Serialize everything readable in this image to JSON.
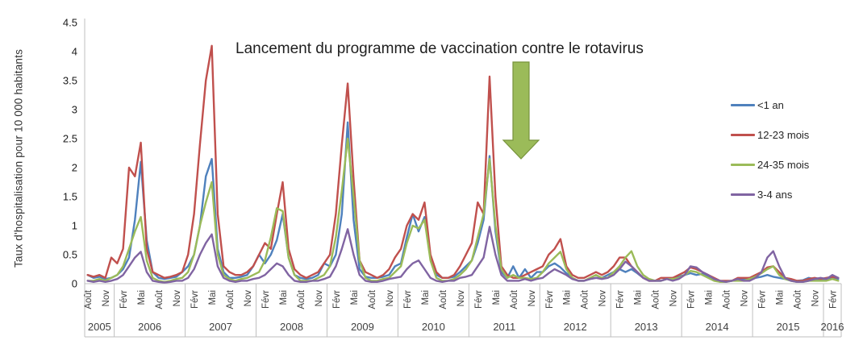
{
  "chart_data": {
    "type": "line",
    "title": "",
    "annotation": {
      "text": "Lancement du programme de vaccination contre le rotavirus",
      "arrow_icon": "down-block-arrow",
      "arrow_color": "#9BBB59",
      "arrow_border": "#77933C",
      "arrow_points_to": "2011-09"
    },
    "ylabel": "Taux d'hospitalisation pour 10 000 habitants",
    "xlabel": "",
    "ylim": [
      0,
      4.5
    ],
    "y_tick_step": 0.5,
    "y_tick_labels": [
      "0",
      "0.5",
      "1",
      "1.5",
      "2",
      "2.5",
      "3",
      "3.5",
      "4",
      "4.5"
    ],
    "grid": false,
    "legend_position": "right",
    "x_axis": {
      "unit": "month",
      "start": "2005-08",
      "end": "2016-03",
      "year_groups": [
        {
          "year": "2005",
          "months": 5,
          "tick_labels": [
            "Août",
            "Nov"
          ],
          "tick_offsets": [
            0,
            3
          ]
        },
        {
          "year": "2006",
          "months": 12,
          "tick_labels": [
            "Févr",
            "Mai",
            "Août",
            "Nov"
          ],
          "tick_offsets": [
            1,
            4,
            7,
            10
          ]
        },
        {
          "year": "2007",
          "months": 12,
          "tick_labels": [
            "Févr",
            "Mai",
            "Août",
            "Nov"
          ],
          "tick_offsets": [
            1,
            4,
            7,
            10
          ]
        },
        {
          "year": "2008",
          "months": 12,
          "tick_labels": [
            "Févr",
            "Mai",
            "Août",
            "Nov"
          ],
          "tick_offsets": [
            1,
            4,
            7,
            10
          ]
        },
        {
          "year": "2009",
          "months": 12,
          "tick_labels": [
            "Févr",
            "Mai",
            "Août",
            "Nov"
          ],
          "tick_offsets": [
            1,
            4,
            7,
            10
          ]
        },
        {
          "year": "2010",
          "months": 12,
          "tick_labels": [
            "Févr",
            "Mai",
            "Août",
            "Nov"
          ],
          "tick_offsets": [
            1,
            4,
            7,
            10
          ]
        },
        {
          "year": "2011",
          "months": 12,
          "tick_labels": [
            "Févr",
            "Mai",
            "Août",
            "Nov"
          ],
          "tick_offsets": [
            1,
            4,
            7,
            10
          ]
        },
        {
          "year": "2012",
          "months": 12,
          "tick_labels": [
            "Févr",
            "Mai",
            "Août",
            "Nov"
          ],
          "tick_offsets": [
            1,
            4,
            7,
            10
          ]
        },
        {
          "year": "2013",
          "months": 12,
          "tick_labels": [
            "Févr",
            "Mai",
            "Août",
            "Nov"
          ],
          "tick_offsets": [
            1,
            4,
            7,
            10
          ]
        },
        {
          "year": "2014",
          "months": 12,
          "tick_labels": [
            "Févr",
            "Mai",
            "Août",
            "Nov"
          ],
          "tick_offsets": [
            1,
            4,
            7,
            10
          ]
        },
        {
          "year": "2015",
          "months": 12,
          "tick_labels": [
            "Févr",
            "Mai",
            "Août",
            "Nov"
          ],
          "tick_offsets": [
            1,
            4,
            7,
            10
          ]
        },
        {
          "year": "2016",
          "months": 3,
          "tick_labels": [
            "Févr"
          ],
          "tick_offsets": [
            1
          ]
        }
      ]
    },
    "series": [
      {
        "name": "<1 an",
        "color": "#4F81BD",
        "values": [
          0.15,
          0.1,
          0.12,
          0.08,
          0.1,
          0.15,
          0.25,
          0.45,
          1.1,
          2.1,
          0.75,
          0.2,
          0.1,
          0.08,
          0.1,
          0.12,
          0.2,
          0.3,
          0.5,
          1.0,
          1.85,
          2.15,
          0.6,
          0.2,
          0.1,
          0.1,
          0.12,
          0.15,
          0.3,
          0.5,
          0.35,
          0.5,
          0.75,
          1.2,
          0.45,
          0.15,
          0.1,
          0.08,
          0.1,
          0.15,
          0.35,
          0.3,
          0.5,
          1.2,
          2.78,
          1.1,
          0.25,
          0.12,
          0.1,
          0.1,
          0.12,
          0.15,
          0.3,
          0.35,
          0.8,
          1.2,
          0.9,
          1.15,
          0.45,
          0.15,
          0.1,
          0.1,
          0.12,
          0.2,
          0.3,
          0.4,
          0.7,
          1.1,
          2.2,
          0.9,
          0.2,
          0.1,
          0.3,
          0.1,
          0.25,
          0.1,
          0.2,
          0.2,
          0.3,
          0.35,
          0.28,
          0.18,
          0.1,
          0.05,
          0.05,
          0.08,
          0.1,
          0.1,
          0.15,
          0.2,
          0.25,
          0.2,
          0.25,
          0.18,
          0.1,
          0.05,
          0.05,
          0.05,
          0.08,
          0.1,
          0.12,
          0.15,
          0.18,
          0.15,
          0.17,
          0.12,
          0.06,
          0.04,
          0.04,
          0.05,
          0.06,
          0.08,
          0.1,
          0.1,
          0.12,
          0.15,
          0.12,
          0.1,
          0.08,
          0.05,
          0.05,
          0.06,
          0.1,
          0.08,
          0.06,
          0.08,
          0.1,
          0.08
        ]
      },
      {
        "name": "12-23 mois",
        "color": "#C0504D",
        "values": [
          0.15,
          0.12,
          0.15,
          0.1,
          0.45,
          0.35,
          0.6,
          2.0,
          1.85,
          2.43,
          0.6,
          0.2,
          0.15,
          0.1,
          0.12,
          0.15,
          0.2,
          0.5,
          1.2,
          2.4,
          3.5,
          4.1,
          1.2,
          0.3,
          0.2,
          0.15,
          0.15,
          0.2,
          0.3,
          0.5,
          0.7,
          0.6,
          1.2,
          1.75,
          0.6,
          0.25,
          0.15,
          0.1,
          0.15,
          0.2,
          0.35,
          0.5,
          1.2,
          2.4,
          3.45,
          1.8,
          0.4,
          0.2,
          0.15,
          0.1,
          0.15,
          0.25,
          0.45,
          0.6,
          1.0,
          1.2,
          1.1,
          1.4,
          0.5,
          0.2,
          0.1,
          0.1,
          0.15,
          0.3,
          0.5,
          0.7,
          1.4,
          1.2,
          3.57,
          1.5,
          0.3,
          0.15,
          0.1,
          0.1,
          0.15,
          0.2,
          0.25,
          0.3,
          0.5,
          0.6,
          0.77,
          0.3,
          0.15,
          0.1,
          0.1,
          0.15,
          0.2,
          0.15,
          0.2,
          0.3,
          0.45,
          0.45,
          0.3,
          0.2,
          0.1,
          0.05,
          0.05,
          0.1,
          0.1,
          0.1,
          0.15,
          0.2,
          0.28,
          0.25,
          0.2,
          0.15,
          0.1,
          0.05,
          0.05,
          0.05,
          0.1,
          0.1,
          0.1,
          0.15,
          0.2,
          0.28,
          0.3,
          0.2,
          0.1,
          0.08,
          0.05,
          0.05,
          0.08,
          0.1,
          0.08,
          0.1,
          0.12,
          0.1
        ]
      },
      {
        "name": "24-35 mois",
        "color": "#9BBB59",
        "values": [
          0.05,
          0.05,
          0.08,
          0.05,
          0.1,
          0.15,
          0.3,
          0.6,
          0.9,
          1.15,
          0.4,
          0.1,
          0.05,
          0.03,
          0.05,
          0.08,
          0.1,
          0.2,
          0.5,
          1.0,
          1.4,
          1.75,
          0.5,
          0.15,
          0.08,
          0.05,
          0.08,
          0.1,
          0.15,
          0.2,
          0.4,
          0.8,
          1.3,
          1.25,
          0.45,
          0.15,
          0.05,
          0.05,
          0.05,
          0.1,
          0.15,
          0.3,
          0.8,
          1.6,
          2.5,
          1.5,
          0.4,
          0.1,
          0.05,
          0.05,
          0.08,
          0.1,
          0.2,
          0.3,
          0.7,
          1.0,
          0.95,
          1.1,
          0.4,
          0.1,
          0.05,
          0.05,
          0.08,
          0.15,
          0.25,
          0.4,
          0.8,
          1.2,
          2.15,
          1.0,
          0.25,
          0.1,
          0.15,
          0.1,
          0.1,
          0.08,
          0.1,
          0.2,
          0.35,
          0.45,
          0.55,
          0.25,
          0.1,
          0.05,
          0.05,
          0.1,
          0.15,
          0.1,
          0.1,
          0.2,
          0.3,
          0.45,
          0.56,
          0.3,
          0.15,
          0.08,
          0.05,
          0.05,
          0.08,
          0.08,
          0.1,
          0.15,
          0.22,
          0.2,
          0.15,
          0.1,
          0.05,
          0.03,
          0.03,
          0.05,
          0.05,
          0.05,
          0.08,
          0.12,
          0.18,
          0.25,
          0.3,
          0.15,
          0.08,
          0.05,
          0.03,
          0.03,
          0.05,
          0.05,
          0.05,
          0.05,
          0.08,
          0.05
        ]
      },
      {
        "name": "3-4 ans",
        "color": "#8064A2",
        "values": [
          0.05,
          0.03,
          0.05,
          0.03,
          0.05,
          0.08,
          0.15,
          0.3,
          0.45,
          0.55,
          0.2,
          0.05,
          0.03,
          0.02,
          0.03,
          0.05,
          0.05,
          0.1,
          0.25,
          0.5,
          0.7,
          0.85,
          0.3,
          0.1,
          0.05,
          0.03,
          0.05,
          0.05,
          0.08,
          0.1,
          0.15,
          0.25,
          0.35,
          0.3,
          0.15,
          0.05,
          0.03,
          0.03,
          0.05,
          0.05,
          0.08,
          0.12,
          0.3,
          0.6,
          0.94,
          0.5,
          0.15,
          0.05,
          0.03,
          0.03,
          0.05,
          0.08,
          0.1,
          0.12,
          0.25,
          0.35,
          0.4,
          0.25,
          0.1,
          0.05,
          0.03,
          0.05,
          0.05,
          0.1,
          0.12,
          0.15,
          0.3,
          0.45,
          0.98,
          0.5,
          0.15,
          0.05,
          0.05,
          0.05,
          0.08,
          0.05,
          0.08,
          0.1,
          0.18,
          0.25,
          0.2,
          0.15,
          0.08,
          0.05,
          0.05,
          0.08,
          0.1,
          0.08,
          0.1,
          0.15,
          0.25,
          0.38,
          0.3,
          0.2,
          0.1,
          0.05,
          0.05,
          0.05,
          0.08,
          0.05,
          0.08,
          0.15,
          0.3,
          0.28,
          0.2,
          0.15,
          0.08,
          0.05,
          0.03,
          0.05,
          0.08,
          0.05,
          0.05,
          0.1,
          0.2,
          0.45,
          0.56,
          0.3,
          0.1,
          0.05,
          0.03,
          0.03,
          0.05,
          0.08,
          0.1,
          0.08,
          0.15,
          0.1
        ]
      }
    ]
  }
}
